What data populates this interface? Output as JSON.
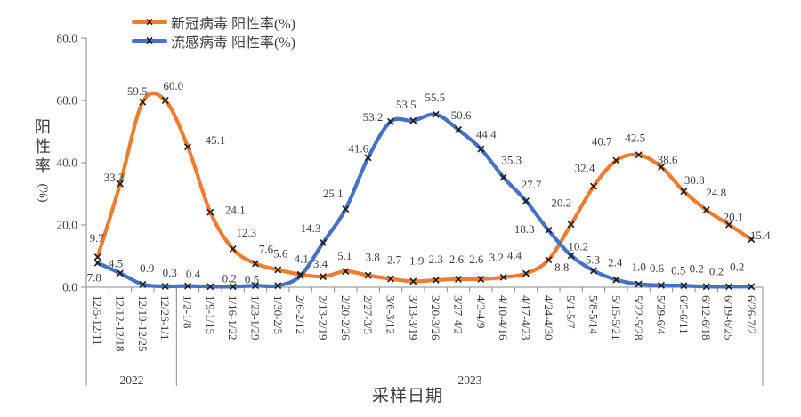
{
  "chart_data": {
    "type": "line",
    "smoothed": true,
    "marker": "x",
    "grid": false,
    "legend_position": "top",
    "x_axis_title": "采样日期",
    "y_axis_title": {
      "text": "阳性率",
      "unit": "(%)"
    },
    "y_axis": {
      "max": 80,
      "ticks": [
        "0.0",
        "20.0",
        "40.0",
        "60.0",
        "80.0"
      ]
    },
    "axis_color": "#8A8A8A",
    "text_color": "#3D3D3D",
    "marker_color": "#1C1C1C",
    "categories": [
      "12/5-12/11",
      "12/12-12/18",
      "12/19-12/25",
      "12/26-1/1",
      "1/2-1/8",
      "1/9-1/15",
      "1/16-1/22",
      "1/23-1/29",
      "1/30-2/5",
      "2/6-2/12",
      "2/13-2/19",
      "2/20-2/26",
      "2/27-3/5",
      "3/6-3/12",
      "3/13-3/19",
      "3/20-3/26",
      "3/27-4/2",
      "4/3-4/9",
      "4/10-4/16",
      "4/17-4/23",
      "4/24-4/30",
      "5/1-5/7",
      "5/8-5/14",
      "5/15-5/21",
      "5/22-5/28",
      "5/29-6/4",
      "6/5-6/11",
      "6/12-6/18",
      "6/19-6/25",
      "6/26-7/2"
    ],
    "year_groups": [
      {
        "label": "2022",
        "span": 4
      },
      {
        "label": "2023",
        "span": 26
      }
    ],
    "series": [
      {
        "id": "covid",
        "name": "新冠病毒 阳性率(%)",
        "color": "#ED7D31",
        "values": [
          9.7,
          33.2,
          59.5,
          60.0,
          45.1,
          24.1,
          12.3,
          7.6,
          5.6,
          4.1,
          3.4,
          5.1,
          3.8,
          2.7,
          1.9,
          2.3,
          2.6,
          2.6,
          3.2,
          4.4,
          8.8,
          20.2,
          32.4,
          40.7,
          42.5,
          38.6,
          30.8,
          24.8,
          20.1,
          15.4
        ],
        "labels": [
          "9.7",
          "33.2",
          "59.5",
          "60.0",
          "45.1",
          "24.1",
          "12.3",
          "7.6",
          "5.6",
          "4.1",
          "3.4",
          "5.1",
          "3.8",
          "2.7",
          "1.9",
          "2.3",
          "2.6",
          "2.6",
          "3.2",
          "4.4",
          "8.8",
          "20.2",
          "32.4",
          "40.7",
          "42.5",
          "38.6",
          "30.8",
          "24.8",
          "20.1",
          "15.4"
        ]
      },
      {
        "id": "flu",
        "name": "流感病毒 阳性率(%)",
        "color": "#4472C4",
        "values": [
          7.8,
          4.5,
          0.9,
          0.3,
          0.4,
          0.2,
          0.2,
          0.5,
          0.5,
          3.7,
          14.3,
          25.1,
          41.6,
          53.2,
          53.5,
          55.5,
          50.6,
          44.4,
          35.3,
          27.7,
          18.3,
          10.2,
          5.3,
          2.4,
          1.0,
          0.6,
          0.5,
          0.2,
          0.2,
          0.2
        ],
        "labels": [
          "7.8",
          "4.5",
          "0.9",
          "0.3",
          "0.4",
          "",
          "0.2",
          "0.5",
          "",
          "",
          "14.3",
          "25.1",
          "41.6",
          "53.2",
          "53.5",
          "55.5",
          "50.6",
          "44.4",
          "35.3",
          "27.7",
          "18.3",
          "10.2",
          "5.3",
          "2.4",
          "1.0",
          "0.6",
          "0.5",
          "0.2",
          "0.2",
          "0.2"
        ]
      }
    ]
  }
}
